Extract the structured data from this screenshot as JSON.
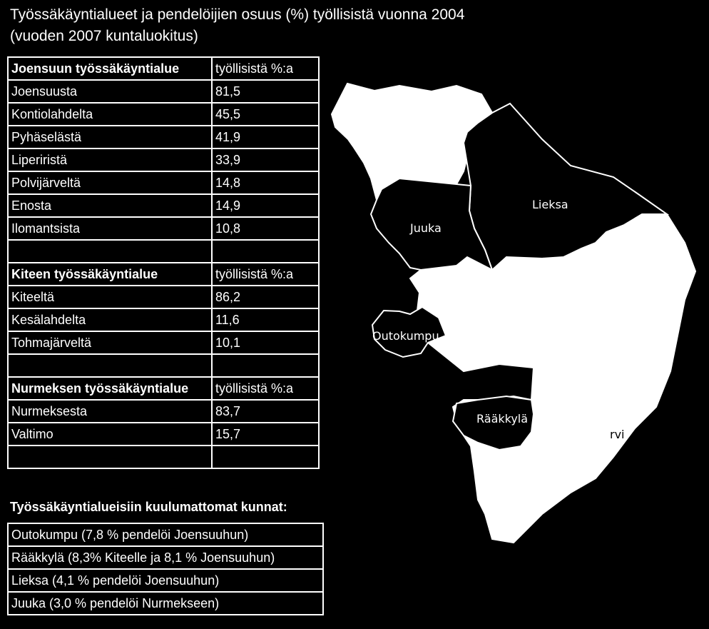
{
  "title": {
    "line1": "Työssäkäyntialueet ja pendelöijien osuus (%) työllisistä vuonna 2004",
    "line2": "(vuoden 2007 kuntaluokitus)"
  },
  "sections": [
    {
      "header": "Joensuun työssäkäyntialue",
      "value_header": "työllisistä %:a",
      "rows": [
        {
          "name": "Joensuusta",
          "value": "81,5"
        },
        {
          "name": "Kontiolahdelta",
          "value": "45,5"
        },
        {
          "name": "Pyhäselästä",
          "value": "41,9"
        },
        {
          "name": "Liperiristä",
          "value": "33,9"
        },
        {
          "name": "Polvijärveltä",
          "value": "14,8"
        },
        {
          "name": "Enosta",
          "value": "14,9"
        },
        {
          "name": "Ilomantsista",
          "value": "10,8"
        }
      ]
    },
    {
      "header": "Kiteen työssäkäyntialue",
      "value_header": "työllisistä %:a",
      "rows": [
        {
          "name": "Kiteeltä",
          "value": "86,2"
        },
        {
          "name": "Kesälahdelta",
          "value": "11,6"
        },
        {
          "name": "Tohmajärveltä",
          "value": "10,1"
        }
      ]
    },
    {
      "header": "Nurmeksen työssäkäyntialue",
      "value_header": "työllisistä %:a",
      "rows": [
        {
          "name": "Nurmeksesta",
          "value": "83,7"
        },
        {
          "name": "Valtimo",
          "value": "15,7"
        }
      ]
    }
  ],
  "non_member_heading": "Työssäkäyntialueisiin kuulumattomat kunnat:",
  "non_members": [
    "Outokumpu (7,8 % pendelöi Joensuuhun)",
    "Rääkkylä (8,3% Kiteelle ja 8,1 % Joensuuhun)",
    "Lieksa (4,1 % pendelöi Joensuuhun)",
    "Juuka  (3,0 % pendelöi Nurmekseen)"
  ],
  "map": {
    "labels": {
      "lieksa": "Lieksa",
      "juuka": "Juuka",
      "outokumpu": "Outokumpu",
      "raakkyla": "Rääkkylä",
      "partial": "rvi"
    },
    "colors": {
      "work_area": "#ffffff",
      "non_member": "#000000",
      "border": "#ffffff"
    }
  }
}
